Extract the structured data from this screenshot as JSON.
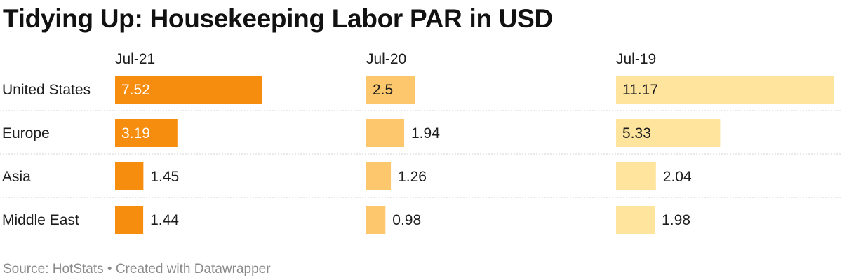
{
  "chart_data": {
    "type": "bar",
    "title": "Tidying Up: Housekeeping Labor PAR in USD",
    "categories": [
      "United States",
      "Europe",
      "Asia",
      "Middle East"
    ],
    "series": [
      {
        "name": "Jul-21",
        "values": [
          7.52,
          3.19,
          1.45,
          1.44
        ],
        "color": "#f68d0e"
      },
      {
        "name": "Jul-20",
        "values": [
          2.5,
          1.94,
          1.26,
          0.98
        ],
        "color": "#fdc86d"
      },
      {
        "name": "Jul-19",
        "values": [
          11.17,
          5.33,
          2.04,
          1.98
        ],
        "color": "#fee49d"
      }
    ],
    "value_labels": [
      [
        "7.52",
        "3.19",
        "1.45",
        "1.44"
      ],
      [
        "2.5",
        "1.94",
        "1.26",
        "0.98"
      ],
      [
        "11.17",
        "5.33",
        "2.04",
        "1.98"
      ]
    ],
    "xlim": [
      0,
      11.17
    ],
    "grid": "dotted row separators",
    "source": "Source: HotStats • Created with Datawrapper"
  }
}
